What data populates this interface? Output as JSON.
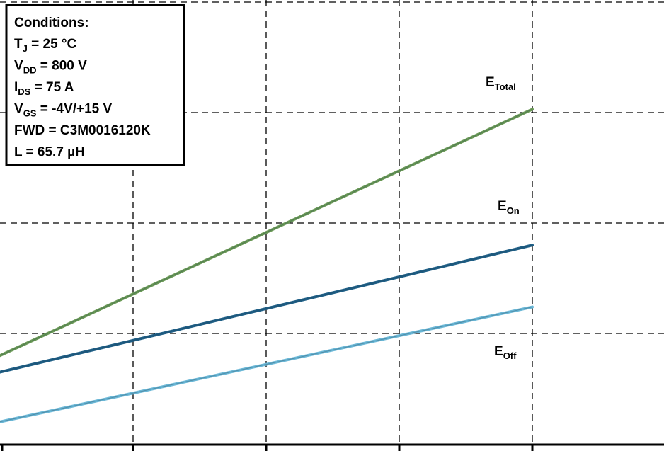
{
  "chart_data": {
    "type": "line",
    "title": "",
    "xlabel": "",
    "ylabel": "",
    "grid": true,
    "legend": "inline-right",
    "xlim": [
      0,
      4
    ],
    "ylim": [
      0,
      4
    ],
    "x_ticks": [
      1,
      2,
      3,
      4
    ],
    "y_gridlines": [
      1,
      2,
      3,
      4
    ],
    "series": [
      {
        "name": "E",
        "sub": "Total",
        "color": "#6b9a56",
        "x": [
          0,
          4
        ],
        "y": [
          0.8,
          3.03
        ]
      },
      {
        "name": "E",
        "sub": "On",
        "color": "#1f5f86",
        "x": [
          0,
          4
        ],
        "y": [
          0.65,
          1.8
        ]
      },
      {
        "name": "E",
        "sub": "Off",
        "color": "#6ab7d6",
        "x": [
          0,
          4
        ],
        "y": [
          0.2,
          1.24
        ]
      }
    ]
  },
  "conditions": {
    "heading": "Conditions:",
    "lines": [
      {
        "main": "T",
        "sub": "J",
        "rest": " = 25 °C"
      },
      {
        "main": "V",
        "sub": "DD",
        "rest": " = 800 V"
      },
      {
        "main": "I",
        "sub": "DS",
        "rest": " = 75 A"
      },
      {
        "main": "V",
        "sub": "GS",
        "rest": " = -4V/+15 V"
      },
      {
        "main": "FWD = C3M0016120K",
        "sub": "",
        "rest": ""
      },
      {
        "main": "L = 65.7 µH",
        "sub": "",
        "rest": ""
      }
    ]
  }
}
